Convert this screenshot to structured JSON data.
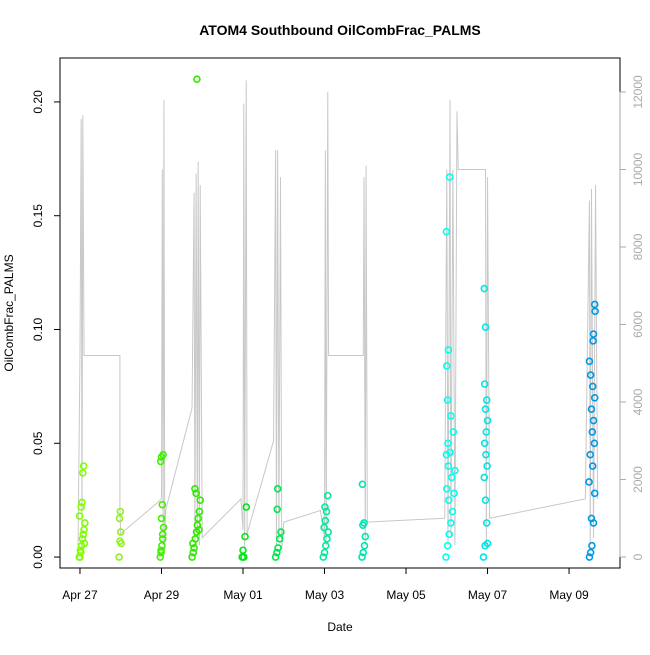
{
  "chart_data": {
    "type": "scatter",
    "title": "ATOM4 Southbound OilCombFrac_PALMS",
    "xlabel": "Date",
    "ylabel": "OilCombFrac_PALMS",
    "xlim": [
      26.51,
      40.25
    ],
    "ylim": [
      -0.0048,
      0.2193
    ],
    "y2lim": [
      -284,
      12877
    ],
    "xticks": [
      {
        "value": 27,
        "label": "Apr 27"
      },
      {
        "value": 29,
        "label": "Apr 29"
      },
      {
        "value": 31,
        "label": "May 01"
      },
      {
        "value": 33,
        "label": "May 03"
      },
      {
        "value": 35,
        "label": "May 05"
      },
      {
        "value": 37,
        "label": "May 07"
      },
      {
        "value": 39,
        "label": "May 09"
      }
    ],
    "yticks": [
      {
        "value": 0,
        "label": "0.00"
      },
      {
        "value": 0.05,
        "label": "0.05"
      },
      {
        "value": 0.1,
        "label": "0.10"
      },
      {
        "value": 0.15,
        "label": "0.15"
      },
      {
        "value": 0.2,
        "label": "0.20"
      }
    ],
    "y2ticks": [
      0,
      2000,
      4000,
      6000,
      8000,
      10000,
      12000
    ],
    "series": [
      {
        "type": "line",
        "axis": "y2",
        "color": "#c8c8c8",
        "x": [
          26.95,
          27.0,
          27.03,
          27.05,
          27.07,
          27.1,
          27.98,
          27.98,
          28.0,
          28.9,
          29.0,
          29.02,
          29.04,
          29.06,
          29.08,
          29.1,
          29.75,
          29.8,
          29.82,
          29.85,
          29.88,
          29.9,
          29.93,
          29.95,
          30.0,
          30.95,
          31.0,
          31.02,
          31.04,
          31.08,
          31.1,
          31.75,
          31.8,
          31.82,
          31.85,
          31.88,
          31.92,
          31.95,
          32.0,
          32.9,
          33.0,
          33.02,
          33.04,
          33.08,
          33.1,
          33.95,
          33.97,
          34.0,
          34.02,
          34.05,
          35.95,
          36.0,
          36.03,
          36.08,
          36.1,
          36.15,
          36.2,
          36.25,
          36.28,
          36.95,
          36.97,
          37.0,
          37.05,
          39.4,
          39.5,
          39.52,
          39.55,
          39.6,
          39.65,
          39.7
        ],
        "values": [
          0,
          5200,
          11300,
          300,
          11400,
          5200,
          5200,
          1200,
          600,
          1400,
          1500,
          10000,
          300,
          11800,
          200,
          1200,
          3850,
          9400,
          300,
          9900,
          500,
          10200,
          300,
          9600,
          500,
          1500,
          700,
          11700,
          200,
          12300,
          600,
          3000,
          10500,
          300,
          10500,
          400,
          9800,
          200,
          900,
          1200,
          500,
          10500,
          300,
          12000,
          5200,
          5200,
          9800,
          300,
          10100,
          900,
          1000,
          10000,
          300,
          11800,
          500,
          10000,
          300,
          11500,
          10000,
          10000,
          300,
          9800,
          1000,
          1500,
          9200,
          300,
          9500,
          500,
          9600,
          1500
        ]
      },
      {
        "color": "#80ff00",
        "x": [
          26.98,
          27.0,
          27.02,
          27.04,
          27.06,
          27.08,
          27.1,
          27.12,
          26.99,
          27.03,
          27.05,
          27.07,
          27.09,
          27.01,
          27.11
        ],
        "values": [
          0,
          0,
          0.002,
          0.005,
          0.008,
          0.01,
          0.012,
          0.015,
          0.018,
          0.022,
          0.024,
          0.037,
          0.04,
          0.003,
          0.006
        ]
      },
      {
        "color": "#90f020",
        "x": [
          27.96,
          27.98,
          28.0,
          27.97,
          27.99,
          28.01
        ],
        "values": [
          0,
          0.007,
          0.011,
          0.017,
          0.02,
          0.006
        ]
      },
      {
        "color": "#40f000",
        "x": [
          28.97,
          28.99,
          29.01,
          29.03,
          29.05,
          29.0,
          29.02,
          28.98,
          29.0,
          29.04,
          28.99,
          29.03
        ],
        "values": [
          0,
          0.002,
          0.005,
          0.01,
          0.013,
          0.017,
          0.023,
          0.042,
          0.044,
          0.045,
          0.003,
          0.008
        ]
      },
      {
        "color": "#33e800",
        "x": [
          29.75,
          29.78,
          29.8,
          29.83,
          29.86,
          29.88,
          29.9,
          29.93,
          29.95,
          29.85,
          29.82,
          29.87,
          29.77,
          29.92
        ],
        "values": [
          0,
          0.002,
          0.004,
          0.008,
          0.011,
          0.014,
          0.017,
          0.02,
          0.025,
          0.028,
          0.03,
          0.21,
          0.006,
          0.012
        ]
      },
      {
        "color": "#00e61a",
        "x": [
          30.98,
          31.02,
          31.05,
          31.08,
          31.0
        ],
        "values": [
          0,
          0,
          0.009,
          0.022,
          0.003
        ]
      },
      {
        "color": "#00e650",
        "x": [
          31.8,
          31.83,
          31.86,
          31.9,
          31.93,
          31.84,
          31.85
        ],
        "values": [
          0,
          0.002,
          0.004,
          0.008,
          0.011,
          0.021,
          0.03
        ]
      },
      {
        "color": "#00eb99",
        "x": [
          32.97,
          33.0,
          33.03,
          33.06,
          33.09,
          32.99,
          33.02,
          33.05,
          33.01,
          33.08
        ],
        "values": [
          0,
          0.002,
          0.005,
          0.008,
          0.011,
          0.013,
          0.016,
          0.02,
          0.022,
          0.027
        ]
      },
      {
        "color": "#00e6b0",
        "x": [
          33.92,
          33.95,
          33.98,
          34.0,
          33.94,
          33.97,
          33.93
        ],
        "values": [
          0,
          0.002,
          0.005,
          0.009,
          0.014,
          0.015,
          0.032
        ]
      },
      {
        "color": "#00ffee",
        "x": [
          35.98,
          36.02,
          36.06,
          36.1,
          36.14,
          36.05,
          36.0,
          36.12,
          36.04,
          35.99,
          36.08,
          36.03,
          36.16,
          36.1,
          36.02,
          36.0,
          36.04,
          35.99,
          36.07,
          36.2,
          36.18
        ],
        "values": [
          0,
          0.005,
          0.01,
          0.015,
          0.02,
          0.025,
          0.03,
          0.035,
          0.04,
          0.045,
          0.046,
          0.05,
          0.055,
          0.062,
          0.069,
          0.084,
          0.091,
          0.143,
          0.167,
          0.038,
          0.028
        ]
      },
      {
        "color": "#00e5e5",
        "x": [
          36.9,
          36.94,
          36.98,
          36.95,
          36.92,
          36.99,
          36.96,
          36.93,
          36.97,
          37.0,
          36.95,
          36.98,
          36.93,
          36.95,
          36.92,
          37.0
        ],
        "values": [
          0,
          0.005,
          0.015,
          0.025,
          0.035,
          0.04,
          0.045,
          0.05,
          0.055,
          0.06,
          0.065,
          0.069,
          0.076,
          0.101,
          0.118,
          0.006
        ]
      },
      {
        "color": "#0099e6",
        "x": [
          39.5,
          39.53,
          39.56,
          39.6,
          39.55,
          39.63,
          39.49,
          39.58,
          39.52,
          39.62,
          39.57,
          39.6,
          39.55,
          39.63,
          39.58,
          39.53,
          39.5,
          39.59,
          39.6,
          39.64,
          39.63
        ],
        "values": [
          0,
          0.002,
          0.005,
          0.015,
          0.017,
          0.028,
          0.033,
          0.04,
          0.045,
          0.05,
          0.055,
          0.06,
          0.065,
          0.07,
          0.075,
          0.08,
          0.086,
          0.095,
          0.098,
          0.108,
          0.111
        ]
      }
    ]
  }
}
